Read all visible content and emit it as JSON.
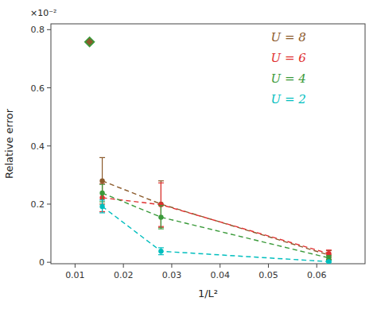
{
  "chart_data": {
    "type": "line",
    "x": [
      0.015625,
      0.027778,
      0.0625
    ],
    "series": [
      {
        "name": "U = 8",
        "color": "#8B5A2B",
        "values": [
          0.28,
          0.2,
          0.025
        ],
        "yerr": [
          0.08,
          0.08,
          0.015
        ]
      },
      {
        "name": "U = 6",
        "color": "#E03030",
        "values": [
          0.222,
          0.198,
          0.03
        ],
        "yerr": [
          0.048,
          0.075,
          0.012
        ]
      },
      {
        "name": "U = 4",
        "color": "#3A9A3A",
        "values": [
          0.238,
          0.155,
          0.015
        ],
        "yerr": [
          0.03,
          0.04,
          0.008
        ]
      },
      {
        "name": "U = 2",
        "color": "#00BEBE",
        "values": [
          0.192,
          0.038,
          0.002
        ],
        "yerr": [
          0.022,
          0.012,
          0.002
        ]
      }
    ],
    "diamond": {
      "x": 0.013,
      "y": 0.758,
      "colors": [
        "#3A9A3A",
        "#8B5A2B"
      ],
      "marker": "diamond"
    },
    "line_style": "dashed",
    "marker": "circle",
    "xlabel": "1/L²",
    "ylabel": "Relative error",
    "annotations": [
      {
        "text": "×10⁻²"
      }
    ],
    "xlim": [
      0.005,
      0.07
    ],
    "ylim": [
      -0.005,
      0.82
    ],
    "xticks": [
      0.01,
      0.02,
      0.03,
      0.04,
      0.05,
      0.06
    ],
    "yticks": [
      0,
      0.2,
      0.4,
      0.6,
      0.8
    ],
    "grid": false,
    "legend": "upper right"
  }
}
